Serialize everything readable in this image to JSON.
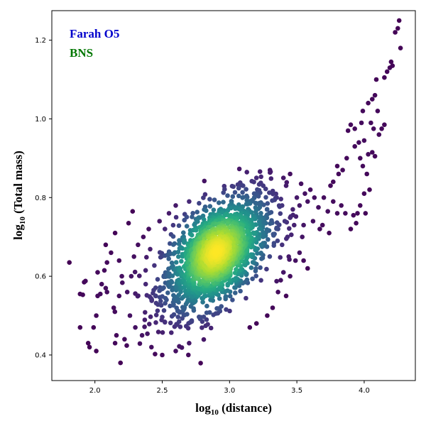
{
  "chart_data": {
    "type": "scatter",
    "colormap": "viridis (colored by point density)",
    "xlabel_base": "log",
    "xlabel_sub": "10",
    "xlabel_rest": " (distance)",
    "ylabel_base": "log",
    "ylabel_sub": "10",
    "ylabel_rest": " (Total mass)",
    "xlim": [
      1.68,
      4.38
    ],
    "ylim": [
      0.335,
      1.275
    ],
    "xticks": [
      {
        "value": 2.0,
        "label": "2.0"
      },
      {
        "value": 2.5,
        "label": "2.5"
      },
      {
        "value": 3.0,
        "label": "3.0"
      },
      {
        "value": 3.5,
        "label": "3.5"
      },
      {
        "value": 4.0,
        "label": "4.0"
      }
    ],
    "yticks": [
      {
        "value": 0.4,
        "label": "0.4"
      },
      {
        "value": 0.6,
        "label": "0.6"
      },
      {
        "value": 0.8,
        "label": "0.8"
      },
      {
        "value": 1.0,
        "label": "1.0"
      },
      {
        "value": 1.2,
        "label": "1.2"
      }
    ],
    "annotations": [
      {
        "text": "Farah  O5",
        "color": "#0000cc"
      },
      {
        "text": "BNS",
        "color": "#007700"
      }
    ],
    "core_cloud": {
      "center": [
        2.9,
        0.655
      ],
      "std_x": 0.2,
      "std_y": 0.075,
      "correlation": 0.55,
      "count": 1700
    },
    "points": [
      [
        1.81,
        0.635
      ],
      [
        1.89,
        0.555
      ],
      [
        1.91,
        0.553
      ],
      [
        1.92,
        0.585
      ],
      [
        1.93,
        0.588
      ],
      [
        1.89,
        0.47
      ],
      [
        1.95,
        0.43
      ],
      [
        1.96,
        0.42
      ],
      [
        2.01,
        0.41
      ],
      [
        1.99,
        0.47
      ],
      [
        2.01,
        0.5
      ],
      [
        2.02,
        0.55
      ],
      [
        2.04,
        0.555
      ],
      [
        2.05,
        0.58
      ],
      [
        2.08,
        0.57
      ],
      [
        2.09,
        0.56
      ],
      [
        2.02,
        0.61
      ],
      [
        2.07,
        0.615
      ],
      [
        2.09,
        0.635
      ],
      [
        2.08,
        0.68
      ],
      [
        2.15,
        0.43
      ],
      [
        2.19,
        0.38
      ],
      [
        2.16,
        0.45
      ],
      [
        2.15,
        0.71
      ],
      [
        2.25,
        0.735
      ],
      [
        2.28,
        0.765
      ],
      [
        2.14,
        0.52
      ],
      [
        2.18,
        0.55
      ],
      [
        2.2,
        0.6
      ],
      [
        2.22,
        0.44
      ],
      [
        3.88,
        0.97
      ],
      [
        3.93,
        0.975
      ],
      [
        3.9,
        0.985
      ],
      [
        3.96,
        0.94
      ],
      [
        4.0,
        0.945
      ],
      [
        3.98,
        0.99
      ],
      [
        3.99,
        1.02
      ],
      [
        4.03,
        1.04
      ],
      [
        4.06,
        1.05
      ],
      [
        4.08,
        1.06
      ],
      [
        4.09,
        1.1
      ],
      [
        4.15,
        1.105
      ],
      [
        4.17,
        1.12
      ],
      [
        4.19,
        1.13
      ],
      [
        4.21,
        1.135
      ],
      [
        4.2,
        1.145
      ],
      [
        4.23,
        1.22
      ],
      [
        4.25,
        1.23
      ],
      [
        4.26,
        1.25
      ],
      [
        4.27,
        1.18
      ],
      [
        4.13,
        0.975
      ],
      [
        4.15,
        0.985
      ],
      [
        4.11,
        0.96
      ],
      [
        4.07,
        0.975
      ],
      [
        4.05,
        0.99
      ],
      [
        4.1,
        1.02
      ],
      [
        3.99,
        0.88
      ],
      [
        4.03,
        0.91
      ],
      [
        4.06,
        0.915
      ],
      [
        4.08,
        0.905
      ],
      [
        4.02,
        0.86
      ],
      [
        4.0,
        0.81
      ],
      [
        4.04,
        0.82
      ],
      [
        4.01,
        0.76
      ],
      [
        3.97,
        0.78
      ],
      [
        3.95,
        0.76
      ],
      [
        3.92,
        0.755
      ],
      [
        3.94,
        0.735
      ],
      [
        3.9,
        0.72
      ],
      [
        3.86,
        0.76
      ],
      [
        3.83,
        0.78
      ],
      [
        3.8,
        0.76
      ],
      [
        3.77,
        0.79
      ],
      [
        3.73,
        0.765
      ],
      [
        3.7,
        0.8
      ],
      [
        3.66,
        0.775
      ],
      [
        3.75,
        0.83
      ],
      [
        3.77,
        0.84
      ],
      [
        3.69,
        0.73
      ],
      [
        3.74,
        0.71
      ],
      [
        3.67,
        0.72
      ],
      [
        3.62,
        0.74
      ],
      [
        3.6,
        0.82
      ],
      [
        3.63,
        0.8
      ],
      [
        3.58,
        0.79
      ],
      [
        3.56,
        0.81
      ],
      [
        3.52,
        0.78
      ],
      [
        3.5,
        0.8
      ],
      [
        3.47,
        0.77
      ],
      [
        3.55,
        0.73
      ],
      [
        3.54,
        0.7
      ],
      [
        3.48,
        0.73
      ],
      [
        3.42,
        0.83
      ],
      [
        3.4,
        0.85
      ],
      [
        3.45,
        0.86
      ],
      [
        3.81,
        0.86
      ],
      [
        3.84,
        0.87
      ],
      [
        3.87,
        0.9
      ],
      [
        3.93,
        0.93
      ],
      [
        3.97,
        0.9
      ],
      [
        3.8,
        0.88
      ],
      [
        3.44,
        0.65
      ],
      [
        3.49,
        0.64
      ],
      [
        3.52,
        0.66
      ],
      [
        3.55,
        0.64
      ],
      [
        3.58,
        0.62
      ],
      [
        3.4,
        0.61
      ],
      [
        3.45,
        0.6
      ],
      [
        3.38,
        0.59
      ],
      [
        3.36,
        0.56
      ],
      [
        3.42,
        0.55
      ],
      [
        3.1,
        0.83
      ],
      [
        3.2,
        0.85
      ],
      [
        3.25,
        0.83
      ],
      [
        3.3,
        0.87
      ],
      [
        3.35,
        0.8
      ],
      [
        3.39,
        0.78
      ],
      [
        3.41,
        0.74
      ],
      [
        3.36,
        0.72
      ],
      [
        3.43,
        0.7
      ],
      [
        3.39,
        0.68
      ],
      [
        3.32,
        0.52
      ],
      [
        3.28,
        0.5
      ],
      [
        3.2,
        0.48
      ],
      [
        3.15,
        0.47
      ],
      [
        2.7,
        0.79
      ],
      [
        2.6,
        0.78
      ],
      [
        2.55,
        0.76
      ],
      [
        2.48,
        0.74
      ],
      [
        2.52,
        0.72
      ],
      [
        2.42,
        0.42
      ],
      [
        2.5,
        0.4
      ],
      [
        2.6,
        0.41
      ],
      [
        2.7,
        0.43
      ],
      [
        2.35,
        0.45
      ],
      [
        2.3,
        0.47
      ],
      [
        2.26,
        0.5
      ],
      [
        2.24,
        0.56
      ],
      [
        2.27,
        0.6
      ],
      [
        2.29,
        0.65
      ],
      [
        2.32,
        0.68
      ],
      [
        2.36,
        0.7
      ],
      [
        2.4,
        0.72
      ],
      [
        2.18,
        0.64
      ],
      [
        2.12,
        0.66
      ]
    ]
  }
}
